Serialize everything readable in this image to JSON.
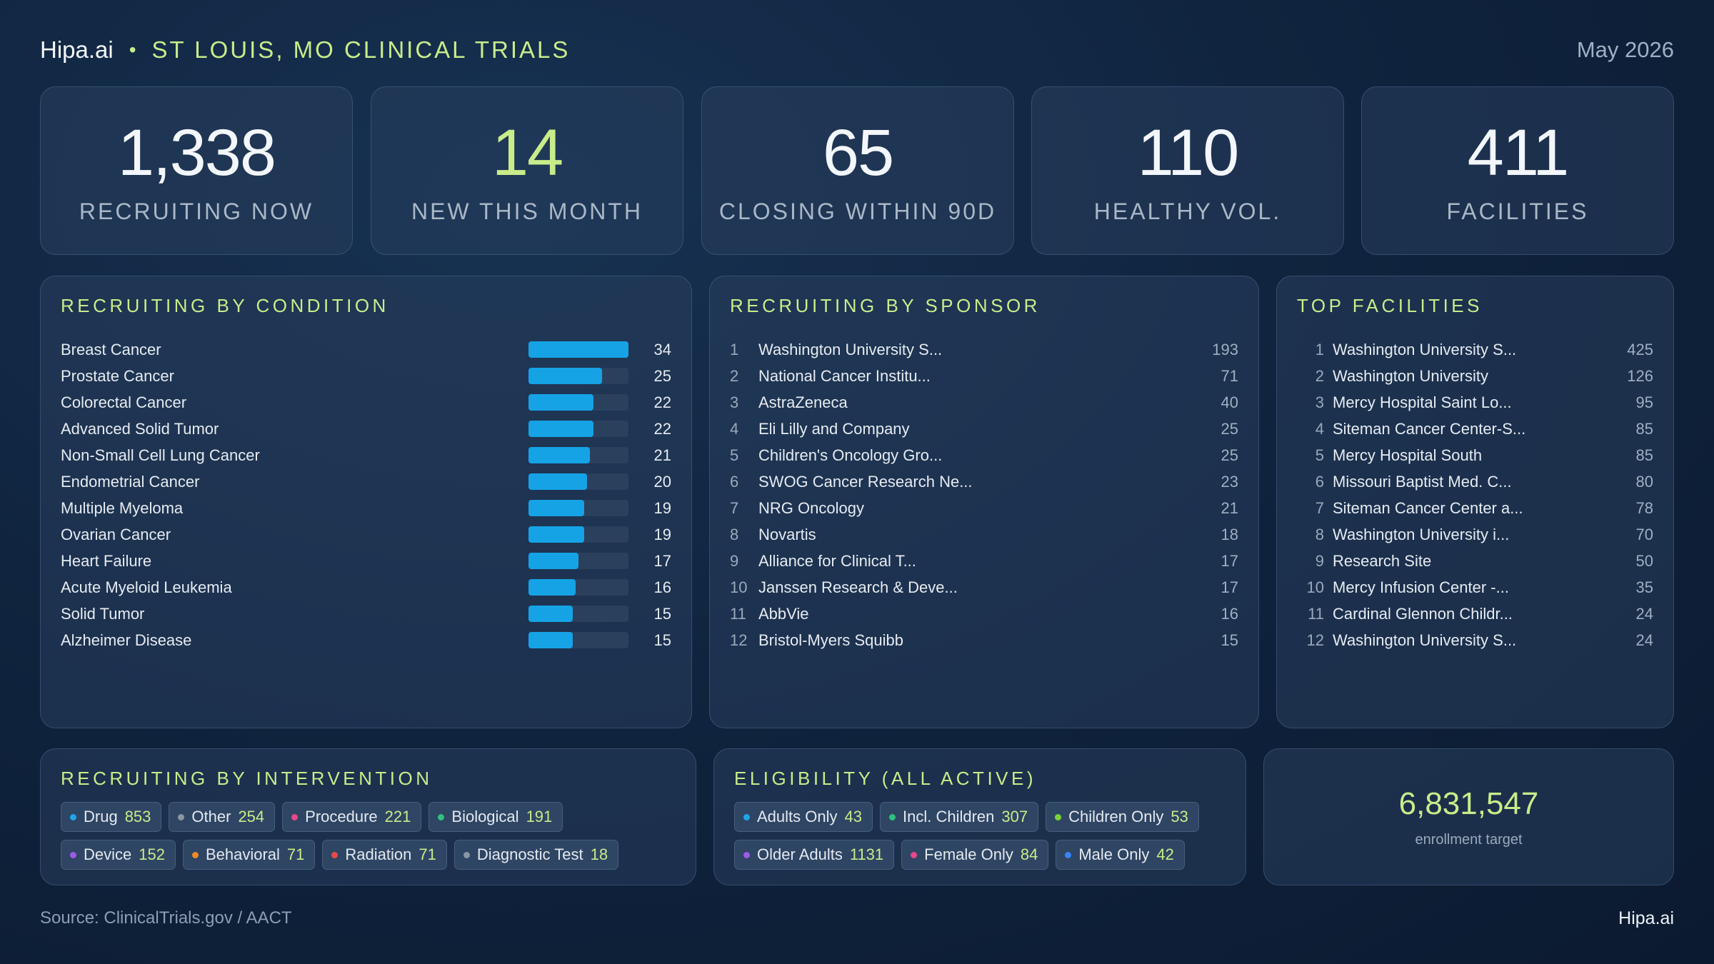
{
  "header": {
    "brand": "Hipa.ai",
    "separator": "•",
    "title": "ST LOUIS, MO CLINICAL TRIALS",
    "date": "May 2026"
  },
  "kpis": [
    {
      "value": "1,338",
      "label": "RECRUITING NOW"
    },
    {
      "value": "14",
      "label": "NEW THIS MONTH"
    },
    {
      "value": "65",
      "label": "CLOSING WITHIN 90D"
    },
    {
      "value": "110",
      "label": "HEALTHY VOL."
    },
    {
      "value": "411",
      "label": "FACILITIES"
    }
  ],
  "condition": {
    "title": "RECRUITING BY CONDITION",
    "bar_color": "#15a3e6",
    "items": [
      {
        "name": "Breast Cancer",
        "value": 34
      },
      {
        "name": "Prostate Cancer",
        "value": 25
      },
      {
        "name": "Colorectal Cancer",
        "value": 22
      },
      {
        "name": "Advanced Solid Tumor",
        "value": 22
      },
      {
        "name": "Non-Small Cell Lung Cancer",
        "value": 21
      },
      {
        "name": "Endometrial Cancer",
        "value": 20
      },
      {
        "name": "Multiple Myeloma",
        "value": 19
      },
      {
        "name": "Ovarian Cancer",
        "value": 19
      },
      {
        "name": "Heart Failure",
        "value": 17
      },
      {
        "name": "Acute Myeloid Leukemia",
        "value": 16
      },
      {
        "name": "Solid Tumor",
        "value": 15
      },
      {
        "name": "Alzheimer Disease",
        "value": 15
      }
    ]
  },
  "sponsor": {
    "title": "RECRUITING BY SPONSOR",
    "items": [
      {
        "rank": "1",
        "name": "Washington University S...",
        "value": "193"
      },
      {
        "rank": "2",
        "name": "National Cancer Institu...",
        "value": "71"
      },
      {
        "rank": "3",
        "name": "AstraZeneca",
        "value": "40"
      },
      {
        "rank": "4",
        "name": "Eli Lilly and Company",
        "value": "25"
      },
      {
        "rank": "5",
        "name": "Children's Oncology Gro...",
        "value": "25"
      },
      {
        "rank": "6",
        "name": "SWOG Cancer Research Ne...",
        "value": "23"
      },
      {
        "rank": "7",
        "name": "NRG Oncology",
        "value": "21"
      },
      {
        "rank": "8",
        "name": "Novartis",
        "value": "18"
      },
      {
        "rank": "9",
        "name": "Alliance for Clinical T...",
        "value": "17"
      },
      {
        "rank": "10",
        "name": "Janssen Research & Deve...",
        "value": "17"
      },
      {
        "rank": "11",
        "name": "AbbVie",
        "value": "16"
      },
      {
        "rank": "12",
        "name": "Bristol-Myers Squibb",
        "value": "15"
      }
    ]
  },
  "facilities": {
    "title": "TOP FACILITIES",
    "items": [
      {
        "rank": "1",
        "name": "Washington University S...",
        "value": "425"
      },
      {
        "rank": "2",
        "name": "Washington University",
        "value": "126"
      },
      {
        "rank": "3",
        "name": "Mercy Hospital Saint Lo...",
        "value": "95"
      },
      {
        "rank": "4",
        "name": "Siteman Cancer Center-S...",
        "value": "85"
      },
      {
        "rank": "5",
        "name": "Mercy Hospital South",
        "value": "85"
      },
      {
        "rank": "6",
        "name": "Missouri Baptist Med. C...",
        "value": "80"
      },
      {
        "rank": "7",
        "name": "Siteman Cancer Center a...",
        "value": "78"
      },
      {
        "rank": "8",
        "name": "Washington University i...",
        "value": "70"
      },
      {
        "rank": "9",
        "name": "Research Site",
        "value": "50"
      },
      {
        "rank": "10",
        "name": "Mercy Infusion Center -...",
        "value": "35"
      },
      {
        "rank": "11",
        "name": "Cardinal Glennon Childr...",
        "value": "24"
      },
      {
        "rank": "12",
        "name": "Washington University S...",
        "value": "24"
      }
    ]
  },
  "intervention": {
    "title": "RECRUITING BY INTERVENTION",
    "items": [
      {
        "name": "Drug",
        "value": "853",
        "color": "#1fa6e8"
      },
      {
        "name": "Other",
        "value": "254",
        "color": "#8a96a3"
      },
      {
        "name": "Procedure",
        "value": "221",
        "color": "#e8478a"
      },
      {
        "name": "Biological",
        "value": "191",
        "color": "#2ec27e"
      },
      {
        "name": "Device",
        "value": "152",
        "color": "#9a5ce6"
      },
      {
        "name": "Behavioral",
        "value": "71",
        "color": "#f08a24"
      },
      {
        "name": "Radiation",
        "value": "71",
        "color": "#e84a4a"
      },
      {
        "name": "Diagnostic Test",
        "value": "18",
        "color": "#8a96a3"
      }
    ]
  },
  "eligibility": {
    "title": "ELIGIBILITY (ALL ACTIVE)",
    "items": [
      {
        "name": "Adults Only",
        "value": "43",
        "color": "#1fa6e8"
      },
      {
        "name": "Incl. Children",
        "value": "307",
        "color": "#2ec27e"
      },
      {
        "name": "Children Only",
        "value": "53",
        "color": "#7bd13a"
      },
      {
        "name": "Older Adults",
        "value": "1131",
        "color": "#9a5ce6"
      },
      {
        "name": "Female Only",
        "value": "84",
        "color": "#e8478a"
      },
      {
        "name": "Male Only",
        "value": "42",
        "color": "#3b82f6"
      }
    ]
  },
  "enrollment": {
    "value": "6,831,547",
    "label": "enrollment target"
  },
  "footer": {
    "source": "Source: ClinicalTrials.gov / AACT",
    "brand": "Hipa.ai"
  }
}
